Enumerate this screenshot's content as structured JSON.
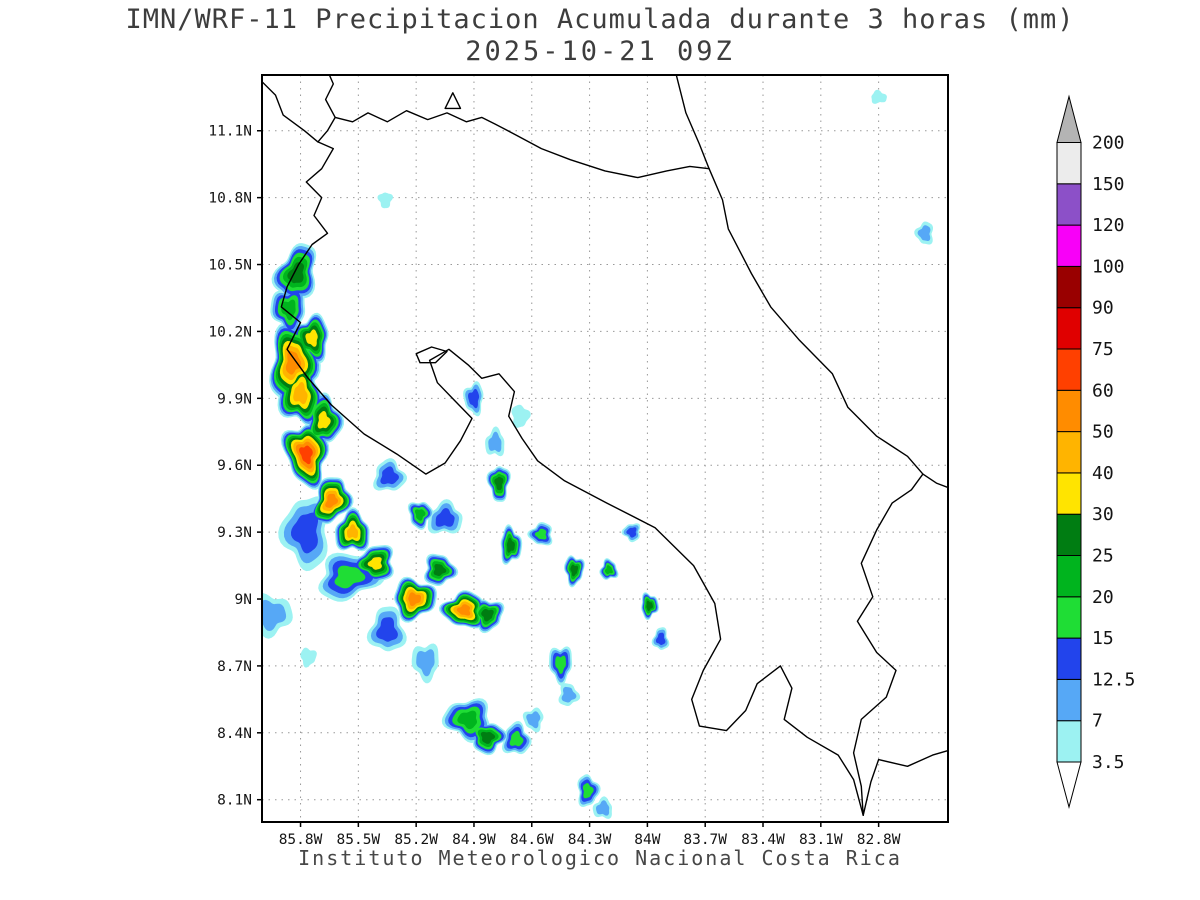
{
  "header": {
    "title": "IMN/WRF-11 Precipitacion Acumulada durante 3 horas (mm)",
    "subtitle": "2025-10-21 09Z"
  },
  "footer": {
    "credit": "Instituto Meteorologico Nacional Costa Rica"
  },
  "axes": {
    "lon_min": -86.0,
    "lon_max": -82.44,
    "lat_min": 8.0,
    "lat_max": 11.35,
    "x_ticks": [
      {
        "label": "85.8W",
        "lon": -85.8
      },
      {
        "label": "85.5W",
        "lon": -85.5
      },
      {
        "label": "85.2W",
        "lon": -85.2
      },
      {
        "label": "84.9W",
        "lon": -84.9
      },
      {
        "label": "84.6W",
        "lon": -84.6
      },
      {
        "label": "84.3W",
        "lon": -84.3
      },
      {
        "label": "84W",
        "lon": -84.0
      },
      {
        "label": "83.7W",
        "lon": -83.7
      },
      {
        "label": "83.4W",
        "lon": -83.4
      },
      {
        "label": "83.1W",
        "lon": -83.1
      },
      {
        "label": "82.8W",
        "lon": -82.8
      }
    ],
    "y_ticks": [
      {
        "label": "11.1N",
        "lat": 11.1
      },
      {
        "label": "10.8N",
        "lat": 10.8
      },
      {
        "label": "10.5N",
        "lat": 10.5
      },
      {
        "label": "10.2N",
        "lat": 10.2
      },
      {
        "label": "9.9N",
        "lat": 9.9
      },
      {
        "label": "9.6N",
        "lat": 9.6
      },
      {
        "label": "9.3N",
        "lat": 9.3
      },
      {
        "label": "9N",
        "lat": 9.0
      },
      {
        "label": "8.7N",
        "lat": 8.7
      },
      {
        "label": "8.4N",
        "lat": 8.4
      },
      {
        "label": "8.1N",
        "lat": 8.1
      }
    ]
  },
  "legend": {
    "units": "mm",
    "levels": [
      3.5,
      7,
      12.5,
      15,
      20,
      25,
      30,
      40,
      50,
      60,
      75,
      90,
      100,
      120,
      150,
      200
    ],
    "labels": [
      "3.5",
      "7",
      "12.5",
      "15",
      "20",
      "25",
      "30",
      "40",
      "50",
      "60",
      "75",
      "90",
      "100",
      "120",
      "150",
      "200"
    ],
    "seg_colors": [
      "#9cf2f2",
      "#56a8f6",
      "#2244ec",
      "#1fdd35",
      "#00b41e",
      "#007d12",
      "#ffe400",
      "#ffb400",
      "#ff8c00",
      "#ff4000",
      "#e00000",
      "#990000",
      "#f800f8",
      "#8c50c8",
      "#ececec"
    ],
    "above_color": "#b4b4b4",
    "below_color": "#ffffff"
  },
  "geography": {
    "coastlines": [
      [
        [
          -86.0,
          11.32
        ],
        [
          -85.93,
          11.26
        ],
        [
          -85.89,
          11.17
        ],
        [
          -85.78,
          11.1
        ],
        [
          -85.71,
          11.05
        ],
        [
          -85.63,
          11.02
        ],
        [
          -85.69,
          10.93
        ],
        [
          -85.77,
          10.87
        ],
        [
          -85.69,
          10.8
        ],
        [
          -85.73,
          10.72
        ],
        [
          -85.66,
          10.64
        ],
        [
          -85.74,
          10.59
        ],
        [
          -85.81,
          10.5
        ],
        [
          -85.87,
          10.4
        ],
        [
          -85.9,
          10.31
        ],
        [
          -85.8,
          10.24
        ],
        [
          -85.87,
          10.12
        ],
        [
          -85.76,
          9.99
        ],
        [
          -85.64,
          9.87
        ],
        [
          -85.47,
          9.74
        ],
        [
          -85.3,
          9.65
        ],
        [
          -85.15,
          9.56
        ],
        [
          -85.05,
          9.61
        ],
        [
          -84.97,
          9.71
        ],
        [
          -84.91,
          9.81
        ],
        [
          -85.0,
          9.89
        ],
        [
          -85.09,
          9.97
        ],
        [
          -85.13,
          10.07
        ],
        [
          -85.03,
          10.12
        ],
        [
          -84.93,
          10.05
        ],
        [
          -84.86,
          9.99
        ],
        [
          -84.77,
          10.01
        ],
        [
          -84.69,
          9.93
        ],
        [
          -84.72,
          9.82
        ],
        [
          -84.65,
          9.72
        ],
        [
          -84.57,
          9.62
        ],
        [
          -84.43,
          9.53
        ],
        [
          -84.21,
          9.43
        ],
        [
          -83.96,
          9.32
        ],
        [
          -83.76,
          9.15
        ],
        [
          -83.65,
          8.98
        ],
        [
          -83.62,
          8.82
        ],
        [
          -83.71,
          8.68
        ],
        [
          -83.77,
          8.55
        ],
        [
          -83.73,
          8.43
        ],
        [
          -83.59,
          8.41
        ],
        [
          -83.49,
          8.5
        ],
        [
          -83.43,
          8.62
        ],
        [
          -83.31,
          8.7
        ],
        [
          -83.25,
          8.6
        ],
        [
          -83.29,
          8.46
        ],
        [
          -83.17,
          8.38
        ],
        [
          -83.01,
          8.3
        ],
        [
          -82.93,
          8.19
        ],
        [
          -82.88,
          8.03
        ],
        [
          -82.84,
          8.18
        ],
        [
          -82.8,
          8.28
        ],
        [
          -82.65,
          8.25
        ],
        [
          -82.52,
          8.3
        ],
        [
          -82.44,
          8.32
        ]
      ],
      [
        [
          -82.57,
          9.56
        ],
        [
          -82.63,
          9.49
        ],
        [
          -82.73,
          9.43
        ],
        [
          -82.81,
          9.31
        ],
        [
          -82.89,
          9.16
        ],
        [
          -82.83,
          9.01
        ],
        [
          -82.91,
          8.9
        ],
        [
          -82.81,
          8.76
        ],
        [
          -82.71,
          8.68
        ],
        [
          -82.76,
          8.56
        ],
        [
          -82.89,
          8.46
        ],
        [
          -82.93,
          8.31
        ],
        [
          -82.89,
          8.16
        ],
        [
          -82.88,
          8.03
        ]
      ],
      [
        [
          -83.85,
          11.35
        ],
        [
          -83.8,
          11.18
        ],
        [
          -83.73,
          11.04
        ],
        [
          -83.68,
          10.93
        ],
        [
          -83.61,
          10.79
        ],
        [
          -83.58,
          10.66
        ],
        [
          -83.46,
          10.46
        ],
        [
          -83.36,
          10.31
        ],
        [
          -83.21,
          10.16
        ],
        [
          -83.04,
          10.01
        ],
        [
          -82.96,
          9.86
        ],
        [
          -82.81,
          9.73
        ],
        [
          -82.65,
          9.64
        ],
        [
          -82.57,
          9.56
        ],
        [
          -82.5,
          9.52
        ],
        [
          -82.44,
          9.5
        ]
      ],
      [
        [
          -85.71,
          11.05
        ],
        [
          -85.66,
          11.1
        ],
        [
          -85.62,
          11.16
        ],
        [
          -85.53,
          11.14
        ],
        [
          -85.45,
          11.18
        ],
        [
          -85.35,
          11.14
        ],
        [
          -85.25,
          11.19
        ],
        [
          -85.14,
          11.15
        ],
        [
          -85.04,
          11.18
        ],
        [
          -84.94,
          11.14
        ],
        [
          -84.86,
          11.16
        ],
        [
          -84.79,
          11.13
        ],
        [
          -84.68,
          11.08
        ],
        [
          -84.55,
          11.02
        ],
        [
          -84.4,
          10.97
        ],
        [
          -84.22,
          10.92
        ],
        [
          -84.05,
          10.89
        ],
        [
          -83.9,
          10.92
        ],
        [
          -83.78,
          10.94
        ],
        [
          -83.68,
          10.93
        ]
      ],
      [
        [
          -85.62,
          11.16
        ],
        [
          -85.67,
          11.24
        ],
        [
          -85.63,
          11.31
        ],
        [
          -85.65,
          11.35
        ]
      ]
    ],
    "islands": [
      [
        [
          -85.05,
          11.2
        ],
        [
          -85.01,
          11.27
        ],
        [
          -84.97,
          11.2
        ]
      ],
      [
        [
          -85.2,
          10.1
        ],
        [
          -85.12,
          10.13
        ],
        [
          -85.04,
          10.11
        ],
        [
          -85.1,
          10.06
        ],
        [
          -85.18,
          10.06
        ]
      ]
    ]
  },
  "chart_data": {
    "type": "heatmap",
    "field": "3-hour accumulated precipitation",
    "units": "mm",
    "cell_fields": [
      "lon",
      "lat",
      "rx_deg",
      "ry_deg",
      "rotation_deg",
      "max_mm"
    ],
    "cells": [
      [
        -85.82,
        10.46,
        0.1,
        0.13,
        20,
        25
      ],
      [
        -85.86,
        10.3,
        0.09,
        0.1,
        0,
        20
      ],
      [
        -85.84,
        10.06,
        0.12,
        0.17,
        5,
        50
      ],
      [
        -85.8,
        9.92,
        0.11,
        0.14,
        -5,
        40
      ],
      [
        -85.77,
        9.65,
        0.11,
        0.14,
        -10,
        60
      ],
      [
        -85.68,
        9.8,
        0.09,
        0.11,
        0,
        30
      ],
      [
        -85.74,
        10.17,
        0.09,
        0.1,
        0,
        30
      ],
      [
        -85.64,
        9.44,
        0.09,
        0.11,
        25,
        50
      ],
      [
        -85.53,
        9.3,
        0.09,
        0.09,
        0,
        40
      ],
      [
        -85.41,
        9.16,
        0.1,
        0.08,
        -20,
        30
      ],
      [
        -85.21,
        9.0,
        0.11,
        0.09,
        -10,
        50
      ],
      [
        -84.95,
        8.95,
        0.11,
        0.08,
        5,
        50
      ],
      [
        -84.83,
        8.93,
        0.08,
        0.07,
        0,
        25
      ],
      [
        -85.55,
        9.1,
        0.16,
        0.1,
        -15,
        15
      ],
      [
        -85.77,
        9.3,
        0.12,
        0.16,
        0,
        12.5
      ],
      [
        -85.95,
        8.93,
        0.1,
        0.09,
        0,
        7
      ],
      [
        -85.35,
        8.86,
        0.09,
        0.1,
        0,
        12.5
      ],
      [
        -85.15,
        8.72,
        0.07,
        0.08,
        0,
        7
      ],
      [
        -85.08,
        9.13,
        0.08,
        0.07,
        0,
        25
      ],
      [
        -85.05,
        9.36,
        0.09,
        0.07,
        -20,
        12.5
      ],
      [
        -85.18,
        9.38,
        0.06,
        0.06,
        0,
        20
      ],
      [
        -85.34,
        9.55,
        0.08,
        0.07,
        0,
        12.5
      ],
      [
        -84.9,
        9.9,
        0.05,
        0.07,
        0,
        12.5
      ],
      [
        -84.66,
        9.82,
        0.045,
        0.05,
        0,
        3.5
      ],
      [
        -84.79,
        9.7,
        0.05,
        0.06,
        0,
        7
      ],
      [
        -84.77,
        9.52,
        0.055,
        0.08,
        0,
        25
      ],
      [
        -84.71,
        9.24,
        0.055,
        0.08,
        0,
        25
      ],
      [
        -84.55,
        9.29,
        0.06,
        0.05,
        0,
        15
      ],
      [
        -84.38,
        9.13,
        0.05,
        0.065,
        0,
        25
      ],
      [
        -84.2,
        9.13,
        0.045,
        0.045,
        0,
        20
      ],
      [
        -84.08,
        9.3,
        0.045,
        0.04,
        0,
        12.5
      ],
      [
        -83.99,
        8.97,
        0.045,
        0.055,
        0,
        25
      ],
      [
        -83.93,
        8.82,
        0.04,
        0.05,
        0,
        12.5
      ],
      [
        -84.45,
        8.71,
        0.06,
        0.08,
        0,
        15
      ],
      [
        -84.41,
        8.57,
        0.05,
        0.05,
        0,
        7
      ],
      [
        -84.93,
        8.46,
        0.12,
        0.09,
        10,
        20
      ],
      [
        -84.83,
        8.38,
        0.09,
        0.07,
        0,
        25
      ],
      [
        -84.68,
        8.37,
        0.07,
        0.07,
        0,
        15
      ],
      [
        -84.59,
        8.46,
        0.05,
        0.05,
        0,
        7
      ],
      [
        -84.31,
        8.14,
        0.055,
        0.07,
        0,
        15
      ],
      [
        -84.23,
        8.06,
        0.05,
        0.045,
        0,
        7
      ],
      [
        -85.36,
        10.79,
        0.035,
        0.035,
        0,
        3.5
      ],
      [
        -82.8,
        11.25,
        0.04,
        0.028,
        0,
        3.5
      ],
      [
        -82.56,
        10.64,
        0.045,
        0.05,
        0,
        7
      ],
      [
        -85.76,
        8.74,
        0.04,
        0.04,
        0,
        3.5
      ]
    ]
  }
}
